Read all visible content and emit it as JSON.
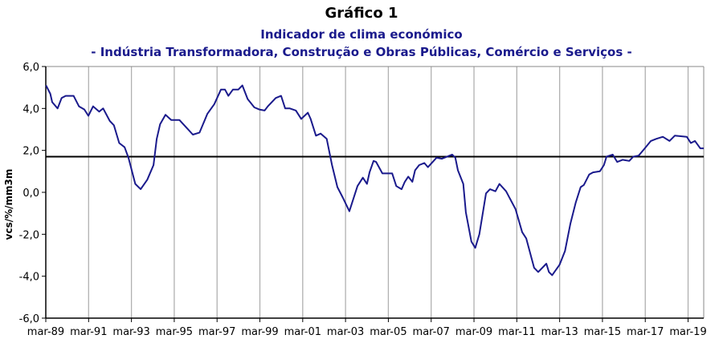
{
  "chart_data": {
    "type": "line",
    "title": "Gráfico 1",
    "subtitle": "Indicador de clima económico",
    "subtitle2": "- Indústria Transformadora, Construção e Obras Públicas, Comércio e Serviços -",
    "xlabel": "",
    "ylabel": "vcs/%/mm3m",
    "ylim": [
      -6,
      6
    ],
    "xlim": [
      1989.17,
      2019.9
    ],
    "yticks": [
      6,
      4,
      2,
      0,
      -2,
      -4,
      -6
    ],
    "ytick_labels": [
      "6,0",
      "4,0",
      "2,0",
      "0,0",
      "-2,0",
      "-4,0",
      "-6,0"
    ],
    "xticks": [
      1989.17,
      1991.17,
      1993.17,
      1995.17,
      1997.17,
      1999.17,
      2001.17,
      2003.17,
      2005.17,
      2007.17,
      2009.17,
      2011.17,
      2013.17,
      2015.17,
      2017.17,
      2019.17
    ],
    "xtick_labels": [
      "mar-89",
      "mar-91",
      "mar-93",
      "mar-95",
      "mar-97",
      "mar-99",
      "mar-01",
      "mar-03",
      "mar-05",
      "mar-07",
      "mar-09",
      "mar-11",
      "mar-13",
      "mar-15",
      "mar-17",
      "mar-19"
    ],
    "grid": "vertical",
    "reference_line": 1.7,
    "colors": {
      "series": "#1a1a8c",
      "reference": "#000000",
      "grid": "#b0b0b0"
    },
    "series": [
      {
        "name": "Indicador de clima económico",
        "x": [
          1989.18,
          1989.38,
          1989.47,
          1989.72,
          1989.91,
          1990.1,
          1990.47,
          1990.72,
          1990.97,
          1991.16,
          1991.38,
          1991.66,
          1991.85,
          1992.16,
          1992.35,
          1992.6,
          1992.85,
          1993.03,
          1993.35,
          1993.6,
          1993.91,
          1994.2,
          1994.35,
          1994.51,
          1994.76,
          1995.03,
          1995.41,
          1995.73,
          1996.04,
          1996.35,
          1996.72,
          1997.04,
          1997.35,
          1997.54,
          1997.7,
          1997.91,
          1998.16,
          1998.35,
          1998.6,
          1998.91,
          1999.14,
          1999.39,
          1999.54,
          1999.91,
          2000.16,
          2000.35,
          2000.57,
          2000.85,
          2001.1,
          2001.41,
          2001.54,
          2001.79,
          2002.01,
          2002.29,
          2002.54,
          2002.79,
          2003.04,
          2003.35,
          2003.73,
          2003.98,
          2004.17,
          2004.29,
          2004.48,
          2004.6,
          2004.89,
          2005.35,
          2005.54,
          2005.79,
          2005.94,
          2006.1,
          2006.29,
          2006.42,
          2006.61,
          2006.85,
          2007.02,
          2007.42,
          2007.67,
          2008.15,
          2008.3,
          2008.42,
          2008.67,
          2008.79,
          2009.05,
          2009.23,
          2009.42,
          2009.73,
          2009.92,
          2010.17,
          2010.36,
          2010.67,
          2011.11,
          2011.42,
          2011.61,
          2011.98,
          2012.17,
          2012.55,
          2012.67,
          2012.82,
          2013.17,
          2013.42,
          2013.67,
          2013.92,
          2014.15,
          2014.3,
          2014.55,
          2014.73,
          2015.05,
          2015.24,
          2015.36,
          2015.65,
          2015.86,
          2016.11,
          2016.42,
          2016.61,
          2016.86,
          2017.11,
          2017.43,
          2017.68,
          2017.99,
          2018.3,
          2018.55,
          2019.11,
          2019.3,
          2019.49,
          2019.74,
          2019.9
        ],
        "values": [
          5.1,
          4.7,
          4.3,
          4.0,
          4.5,
          4.6,
          4.6,
          4.1,
          3.95,
          3.65,
          4.1,
          3.85,
          4.0,
          3.4,
          3.2,
          2.35,
          2.15,
          1.65,
          0.4,
          0.15,
          0.6,
          1.3,
          2.55,
          3.25,
          3.7,
          3.45,
          3.45,
          3.1,
          2.75,
          2.85,
          3.75,
          4.2,
          4.9,
          4.9,
          4.6,
          4.9,
          4.9,
          5.1,
          4.45,
          4.05,
          3.95,
          3.9,
          4.1,
          4.5,
          4.6,
          4.0,
          4.0,
          3.9,
          3.5,
          3.8,
          3.5,
          2.7,
          2.8,
          2.55,
          1.3,
          0.25,
          -0.25,
          -0.9,
          0.3,
          0.7,
          0.4,
          0.95,
          1.5,
          1.45,
          0.9,
          0.9,
          0.3,
          0.15,
          0.5,
          0.75,
          0.5,
          1.05,
          1.3,
          1.4,
          1.2,
          1.65,
          1.6,
          1.8,
          1.65,
          1.05,
          0.4,
          -0.95,
          -2.35,
          -2.65,
          -2.0,
          -0.05,
          0.15,
          0.05,
          0.4,
          0.05,
          -0.8,
          -1.9,
          -2.2,
          -3.6,
          -3.8,
          -3.4,
          -3.8,
          -3.95,
          -3.45,
          -2.8,
          -1.5,
          -0.5,
          0.25,
          0.35,
          0.85,
          0.95,
          1.0,
          1.3,
          1.7,
          1.8,
          1.45,
          1.55,
          1.5,
          1.7,
          1.75,
          2.05,
          2.45,
          2.55,
          2.65,
          2.45,
          2.7,
          2.65,
          2.35,
          2.45,
          2.1,
          2.1
        ]
      }
    ]
  }
}
